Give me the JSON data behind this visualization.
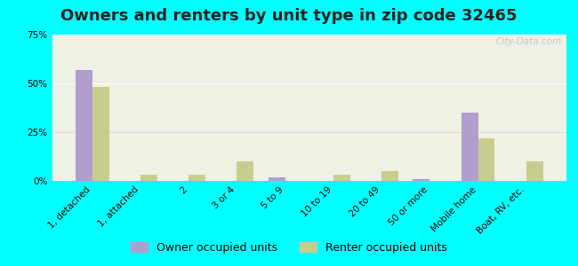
{
  "title": "Owners and renters by unit type in zip code 32465",
  "categories": [
    "1, detached",
    "1, attached",
    "2",
    "3 or 4",
    "5 to 9",
    "10 to 19",
    "20 to 49",
    "50 or more",
    "Mobile home",
    "Boat, RV, etc."
  ],
  "owner_values": [
    57,
    0,
    0,
    0,
    2,
    0,
    0,
    1,
    35,
    0
  ],
  "renter_values": [
    48,
    3,
    3,
    10,
    0,
    3,
    5,
    0,
    22,
    10
  ],
  "owner_color": "#b09fcc",
  "renter_color": "#c8cc8f",
  "background_color": "#00ffff",
  "plot_bg_color": "#edf2e4",
  "ylim": [
    0,
    75
  ],
  "yticks": [
    0,
    25,
    50,
    75
  ],
  "ytick_labels": [
    "0%",
    "25%",
    "50%",
    "75%"
  ],
  "legend_owner": "Owner occupied units",
  "legend_renter": "Renter occupied units",
  "bar_width": 0.35,
  "title_fontsize": 13,
  "tick_fontsize": 7.5,
  "legend_fontsize": 9
}
